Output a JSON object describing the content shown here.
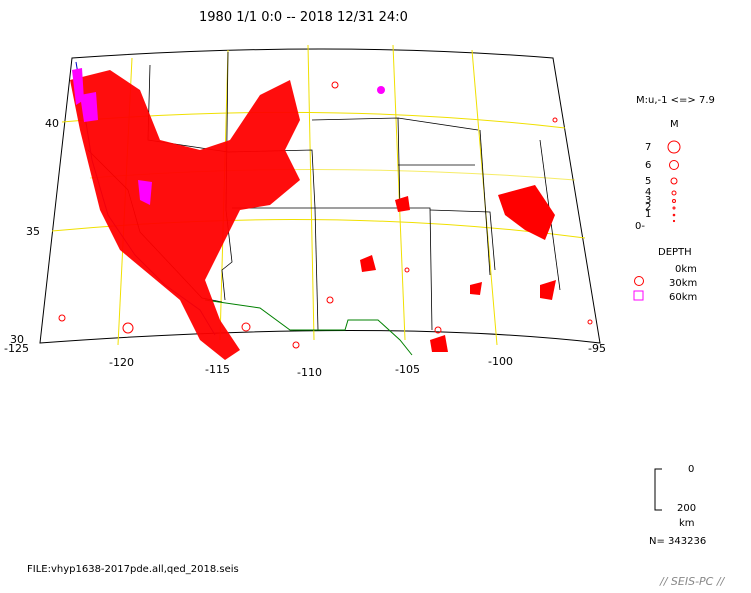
{
  "title": "1980 1/1 0:0 -- 2018 12/31 24:0",
  "map": {
    "lat_labels": [
      "40",
      "35",
      "30"
    ],
    "lon_labels": [
      "-125",
      "-120",
      "-115",
      "-110",
      "-105",
      "-100",
      "-95"
    ],
    "grid_color": "#f0e000",
    "border_color": "#000000",
    "fault_color": "#0000cc",
    "mexico_border_color": "#008000",
    "event_color": "#ff0000",
    "deep_event_color": "#ff00ff"
  },
  "legend": {
    "magnitude_range": "M:u,-1 <=> 7.9",
    "magnitude_title": "M",
    "magnitude_scale": [
      "7",
      "6",
      "5",
      "4",
      "3",
      "2",
      "1",
      "0-"
    ],
    "depth_title": "DEPTH",
    "depth_items": [
      {
        "label": "0km",
        "symbol": "none"
      },
      {
        "label": "30km",
        "symbol": "circle"
      },
      {
        "label": "60km",
        "symbol": "square"
      }
    ]
  },
  "depth_scale": {
    "top": "0",
    "bottom": "200",
    "unit": "km"
  },
  "count": "N= 343236",
  "file_label": "FILE:vhyp1638-2017pde.all,qed_2018.seis",
  "brand": "// SEIS-PC //"
}
